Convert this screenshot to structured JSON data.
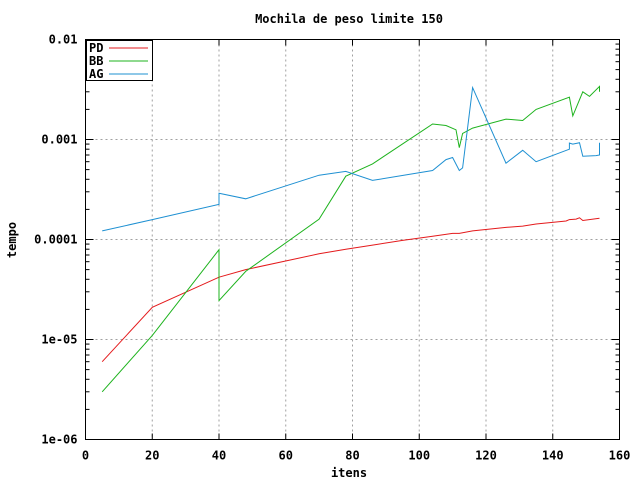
{
  "chart_data": {
    "type": "line",
    "title": "Mochila de peso limite 150",
    "xlabel": "itens",
    "ylabel": "tempo",
    "x_scale": "linear",
    "y_scale": "log",
    "xlim": [
      0,
      160
    ],
    "ylim": [
      1e-06,
      0.01
    ],
    "x_ticks": [
      0,
      20,
      40,
      60,
      80,
      100,
      120,
      140,
      160
    ],
    "x_tick_labels": [
      "0",
      "20",
      "40",
      "60",
      "80",
      "100",
      "120",
      "140",
      "160"
    ],
    "y_ticks": [
      1e-06,
      1e-05,
      0.0001,
      0.001,
      0.01
    ],
    "y_tick_labels": [
      "1e-06",
      "1e-05",
      "0.0001",
      "0.001",
      "0.01"
    ],
    "grid": true,
    "legend_position": "top-left",
    "series": [
      {
        "name": "PD",
        "color": "#e41a1c",
        "x": [
          5,
          20,
          40,
          48,
          70,
          78,
          86,
          95,
          104,
          110,
          112,
          116,
          126,
          131,
          135,
          144,
          145,
          147,
          148,
          149,
          154
        ],
        "y": [
          6e-06,
          2.1e-05,
          4.2e-05,
          5e-05,
          7.2e-05,
          8e-05,
          8.8e-05,
          9.8e-05,
          0.000108,
          0.000115,
          0.000115,
          0.000122,
          0.000132,
          0.000136,
          0.000143,
          0.000153,
          0.000158,
          0.00016,
          0.000165,
          0.000155,
          0.000163
        ]
      },
      {
        "name": "BB",
        "color": "#1eb31e",
        "x": [
          5,
          20,
          40,
          40,
          48,
          70,
          78,
          86,
          104,
          108,
          111,
          112,
          113,
          116,
          126,
          131,
          135,
          145,
          146,
          149,
          151,
          154,
          154
        ],
        "y": [
          3e-06,
          1.1e-05,
          7.9e-05,
          2.45e-05,
          4.8e-05,
          0.00016,
          0.00043,
          0.00057,
          0.00143,
          0.00138,
          0.00125,
          0.00083,
          0.00115,
          0.0013,
          0.0016,
          0.00155,
          0.002,
          0.00265,
          0.00172,
          0.003,
          0.0027,
          0.0034,
          0.003
        ]
      },
      {
        "name": "AG",
        "color": "#1e90d2",
        "x": [
          5,
          20,
          40,
          40,
          48,
          70,
          78,
          86,
          104,
          108,
          110,
          112,
          113,
          116,
          126,
          131,
          135,
          145,
          145,
          146,
          148,
          149,
          153,
          154,
          154
        ],
        "y": [
          0.000122,
          0.000158,
          0.000225,
          0.00029,
          0.000255,
          0.00044,
          0.00048,
          0.00039,
          0.00049,
          0.00063,
          0.00066,
          0.00049,
          0.00052,
          0.0033,
          0.00058,
          0.00078,
          0.0006,
          0.0008,
          0.00092,
          0.0009,
          0.00093,
          0.00068,
          0.00069,
          0.0007,
          0.00093
        ]
      }
    ]
  }
}
